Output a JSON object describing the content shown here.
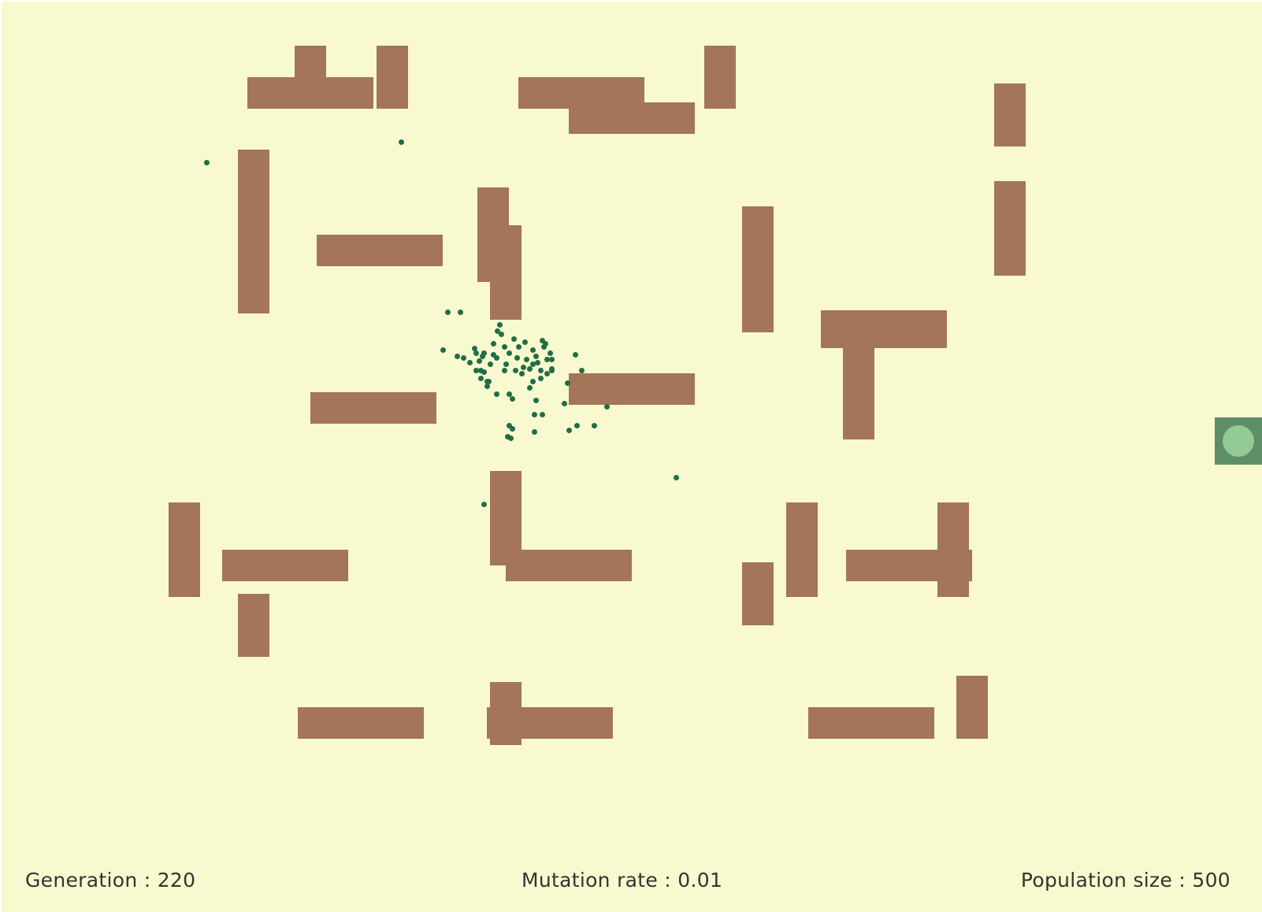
{
  "simulation": {
    "walls_color": "#A47558",
    "background_color": "#F9F9CF",
    "dot_color": "#1F6E47",
    "goal_color": "#93C994",
    "dots_visible_count": 78
  },
  "status": {
    "generation_label": "Generation :",
    "generation_value": "220",
    "mutation_label": "Mutation rate :",
    "mutation_value": "0.01",
    "population_label": "Population size :",
    "population_value": "500"
  }
}
